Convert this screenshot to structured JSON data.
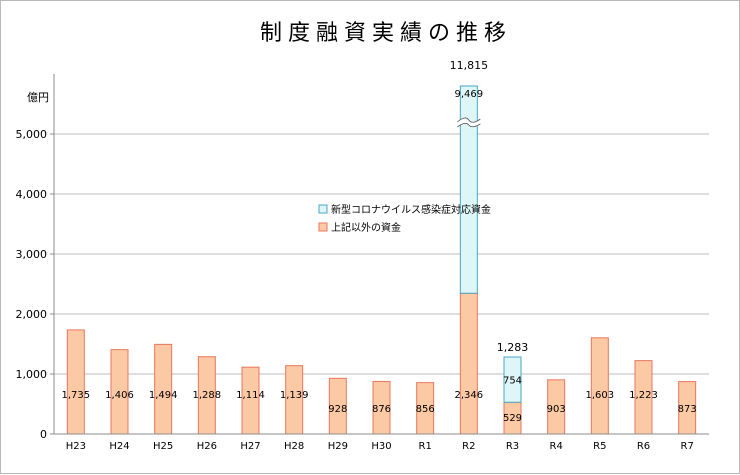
{
  "chart_data": {
    "type": "bar",
    "stacked": true,
    "title": "制度融資実績の推移",
    "ylabel": "億円",
    "ylim": [
      0,
      5800
    ],
    "yticks": [
      0,
      1000,
      2000,
      3000,
      4000,
      5000
    ],
    "ytick_labels": [
      "0",
      "1,000",
      "2,000",
      "3,000",
      "4,000",
      "5,000"
    ],
    "axis_break": true,
    "grid": true,
    "legend_position": "center",
    "categories": [
      "H23",
      "H24",
      "H25",
      "H26",
      "H27",
      "H28",
      "H29",
      "H30",
      "R1",
      "R2",
      "R3",
      "R4",
      "R5",
      "R6",
      "R7"
    ],
    "series": [
      {
        "name": "上記以外の資金",
        "color": "#fbc9a4",
        "edge": "#e8775e",
        "values": [
          1735,
          1406,
          1494,
          1288,
          1114,
          1139,
          928,
          876,
          856,
          2346,
          529,
          903,
          1603,
          1223,
          873
        ],
        "labels": [
          "1,735",
          "1,406",
          "1,494",
          "1,288",
          "1,114",
          "1,139",
          "928",
          "876",
          "856",
          "2,346",
          "529",
          "903",
          "1,603",
          "1,223",
          "873"
        ]
      },
      {
        "name": "新型コロナウイルス感染症対応資金",
        "color": "#dff6f9",
        "edge": "#4aa7c3",
        "values": [
          null,
          null,
          null,
          null,
          null,
          null,
          null,
          null,
          null,
          9469,
          754,
          null,
          null,
          null,
          null
        ],
        "labels": [
          "",
          "",
          "",
          "",
          "",
          "",
          "",
          "",
          "",
          "9,469",
          "754",
          "",
          "",
          "",
          ""
        ]
      }
    ],
    "totals": [
      null,
      null,
      null,
      null,
      null,
      null,
      null,
      null,
      null,
      11815,
      1283,
      null,
      null,
      null,
      null
    ],
    "total_labels": [
      "",
      "",
      "",
      "",
      "",
      "",
      "",
      "",
      "",
      "11,815",
      "1,283",
      "",
      "",
      "",
      ""
    ],
    "colors": {
      "grid": "#bdbdbd",
      "axis": "#8c8c8c",
      "text": "#000000"
    }
  }
}
